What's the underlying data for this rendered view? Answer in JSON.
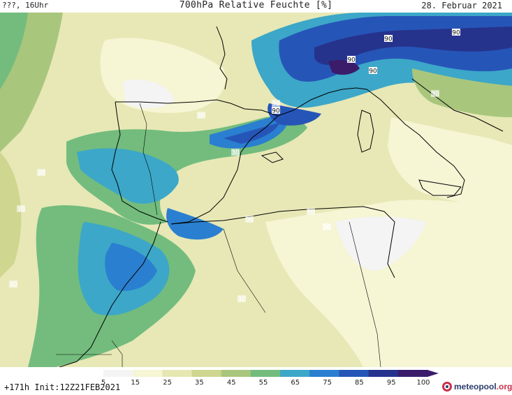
{
  "header": {
    "left": "???, 16Uhr",
    "title": "700hPa Relative Feuchte [%]",
    "right": "28. Februar 2021"
  },
  "footer": {
    "forecast": "+171h",
    "init": "Init:12Z21FEB2021",
    "logo_main": "meteopool",
    "logo_org": ".org"
  },
  "legend": {
    "ticks": [
      "5",
      "15",
      "25",
      "35",
      "45",
      "55",
      "65",
      "75",
      "85",
      "95",
      "100"
    ],
    "colors": [
      "#f4f4f4",
      "#f6f5d4",
      "#e6e7b1",
      "#cfd68f",
      "#a9c67d",
      "#73bc7d",
      "#3ca7c8",
      "#2a7fd0",
      "#2655b8",
      "#26338c",
      "#3a1c6b"
    ]
  },
  "map": {
    "contour_labels": [
      {
        "text": "90",
        "kind": "dark"
      },
      {
        "text": "90",
        "kind": "dark"
      },
      {
        "text": "90",
        "kind": "dark"
      },
      {
        "text": "90",
        "kind": "dark"
      },
      {
        "text": "30",
        "kind": "light"
      },
      {
        "text": "90",
        "kind": "dark"
      },
      {
        "text": "30",
        "kind": "light"
      },
      {
        "text": "30",
        "kind": "light"
      },
      {
        "text": "30",
        "kind": "light"
      },
      {
        "text": "30",
        "kind": "light"
      },
      {
        "text": "30",
        "kind": "light"
      },
      {
        "text": "30",
        "kind": "light"
      },
      {
        "text": "30",
        "kind": "light"
      },
      {
        "text": "30",
        "kind": "light"
      },
      {
        "text": "30",
        "kind": "light"
      },
      {
        "text": "30",
        "kind": "light"
      }
    ]
  }
}
